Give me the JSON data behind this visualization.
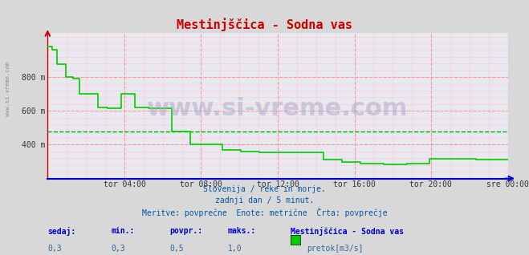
{
  "title": "Mestinjščica - Sodna vas",
  "bg_color": "#d8d8d8",
  "plot_bg_color": "#e8e8f0",
  "grid_color_major": "#ff9999",
  "grid_color_minor": "#ffcccc",
  "line_color": "#00cc00",
  "avg_line_color": "#00aa00",
  "x_axis_color": "#0000cc",
  "y_axis_color": "#cc0000",
  "title_color": "#cc0000",
  "ylabel": "",
  "ylim": [
    200,
    1060
  ],
  "yticks": [
    400,
    600,
    800
  ],
  "ytick_labels": [
    "400 m",
    "600 m",
    "800 m"
  ],
  "avg_value": 480,
  "subtitle_lines": [
    "Slovenija / reke in morje.",
    "zadnji dan / 5 minut.",
    "Meritve: povprečne  Enote: metrične  Črta: povprečje"
  ],
  "footer_label1": "sedaj:",
  "footer_label2": "min.:",
  "footer_label3": "povpr.:",
  "footer_label4": "maks.:",
  "footer_val1": "0,3",
  "footer_val2": "0,3",
  "footer_val3": "0,5",
  "footer_val4": "1,0",
  "footer_station": "Mestinjščica - Sodna vas",
  "footer_legend": "pretok[m3/s]",
  "watermark": "www.si-vreme.com",
  "left_label": "www.si-vreme.com",
  "xtick_labels": [
    "tor 04:00",
    "tor 08:00",
    "tor 12:00",
    "tor 16:00",
    "tor 20:00",
    "sre 00:00"
  ],
  "xtick_positions": [
    0.167,
    0.333,
    0.5,
    0.667,
    0.833,
    1.0
  ],
  "data_x": [
    0.0,
    0.01,
    0.01,
    0.02,
    0.02,
    0.04,
    0.04,
    0.055,
    0.055,
    0.07,
    0.07,
    0.09,
    0.09,
    0.11,
    0.11,
    0.13,
    0.13,
    0.16,
    0.16,
    0.19,
    0.19,
    0.22,
    0.22,
    0.27,
    0.27,
    0.31,
    0.31,
    0.35,
    0.35,
    0.38,
    0.38,
    0.42,
    0.42,
    0.46,
    0.46,
    0.5,
    0.5,
    0.53,
    0.53,
    0.56,
    0.56,
    0.6,
    0.6,
    0.64,
    0.64,
    0.68,
    0.68,
    0.73,
    0.73,
    0.78,
    0.78,
    0.83,
    0.83,
    0.88,
    0.88,
    0.93,
    0.93,
    1.0
  ],
  "data_y": [
    980,
    980,
    960,
    960,
    875,
    875,
    800,
    800,
    790,
    790,
    700,
    700,
    700,
    700,
    620,
    620,
    615,
    615,
    700,
    700,
    620,
    620,
    615,
    615,
    480,
    480,
    400,
    400,
    400,
    400,
    370,
    370,
    360,
    360,
    355,
    355,
    355,
    355,
    355,
    355,
    355,
    355,
    310,
    310,
    300,
    300,
    290,
    290,
    285,
    285,
    290,
    290,
    315,
    315,
    315,
    315,
    310,
    310
  ]
}
